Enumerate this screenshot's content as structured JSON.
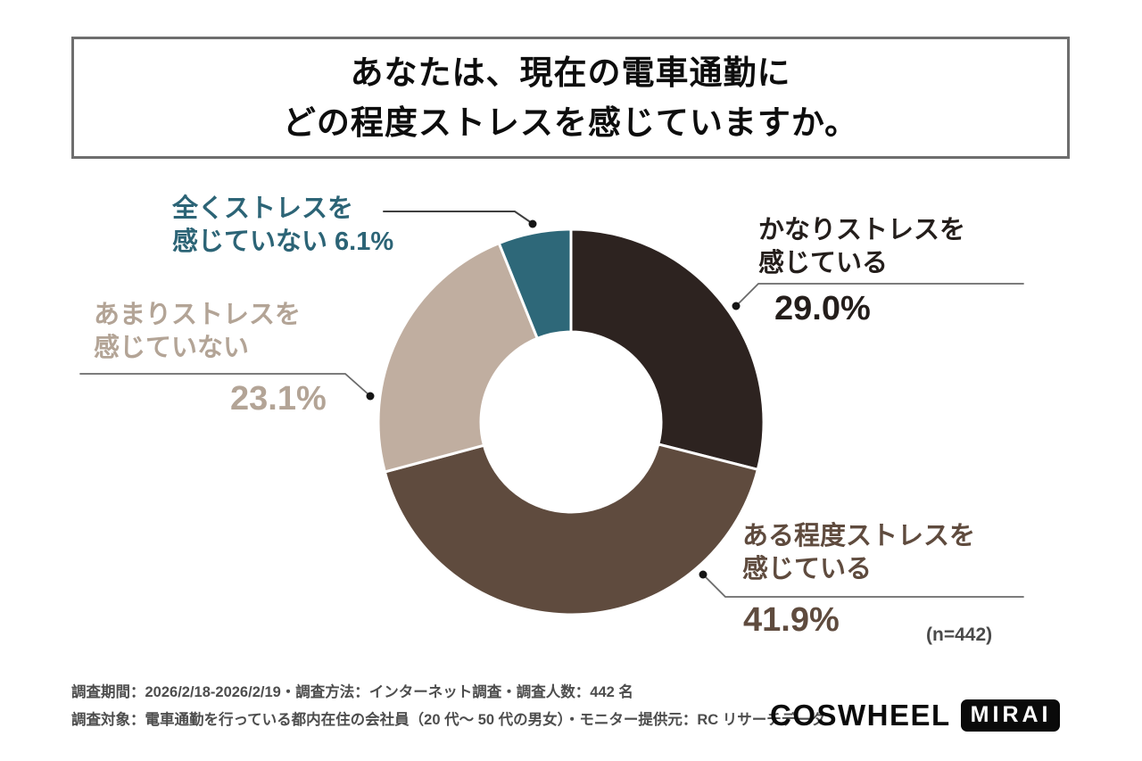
{
  "title": {
    "line1": "あなたは、現在の電車通勤に",
    "line2": "どの程度ストレスを感じていますか。"
  },
  "chart_data": {
    "type": "pie",
    "donut": true,
    "title": "あなたは、現在の電車通勤にどの程度ストレスを感じていますか。",
    "start_angle_deg": 0,
    "direction": "clockwise",
    "segments": [
      {
        "label": "かなりストレスを感じている",
        "value": 29.0,
        "color": "#2d2320"
      },
      {
        "label": "ある程度ストレスを感じている",
        "value": 41.9,
        "color": "#5f4b3e"
      },
      {
        "label": "あまりストレスを感じていない",
        "value": 23.1,
        "color": "#c0aea0"
      },
      {
        "label": "全くストレスを感じていない",
        "value": 6.1,
        "color": "#2e6879"
      }
    ],
    "sample_size": "(n=442)"
  },
  "callouts": {
    "none": {
      "line1": "全くストレスを",
      "line2": "感じていない 6.1%"
    },
    "high": {
      "line1": "かなりストレスを",
      "line2": "感じている",
      "pct": "29.0%"
    },
    "low": {
      "line1": "あまりストレスを",
      "line2": "感じていない",
      "pct": "23.1%"
    },
    "some": {
      "line1": "ある程度ストレスを",
      "line2": "感じている",
      "pct": "41.9%"
    }
  },
  "footnote": {
    "line1": "調査期間：2026/2/18-2026/2/19・調査方法：インターネット調査・調査人数：442 名",
    "line2": "調査対象：電車通勤を行っている都内在住の会社員（20 代～ 50 代の男女）・モニター提供元：RC リサーチデータ"
  },
  "logo": {
    "brand": "COSWHEEL",
    "model": "MIRAI"
  }
}
